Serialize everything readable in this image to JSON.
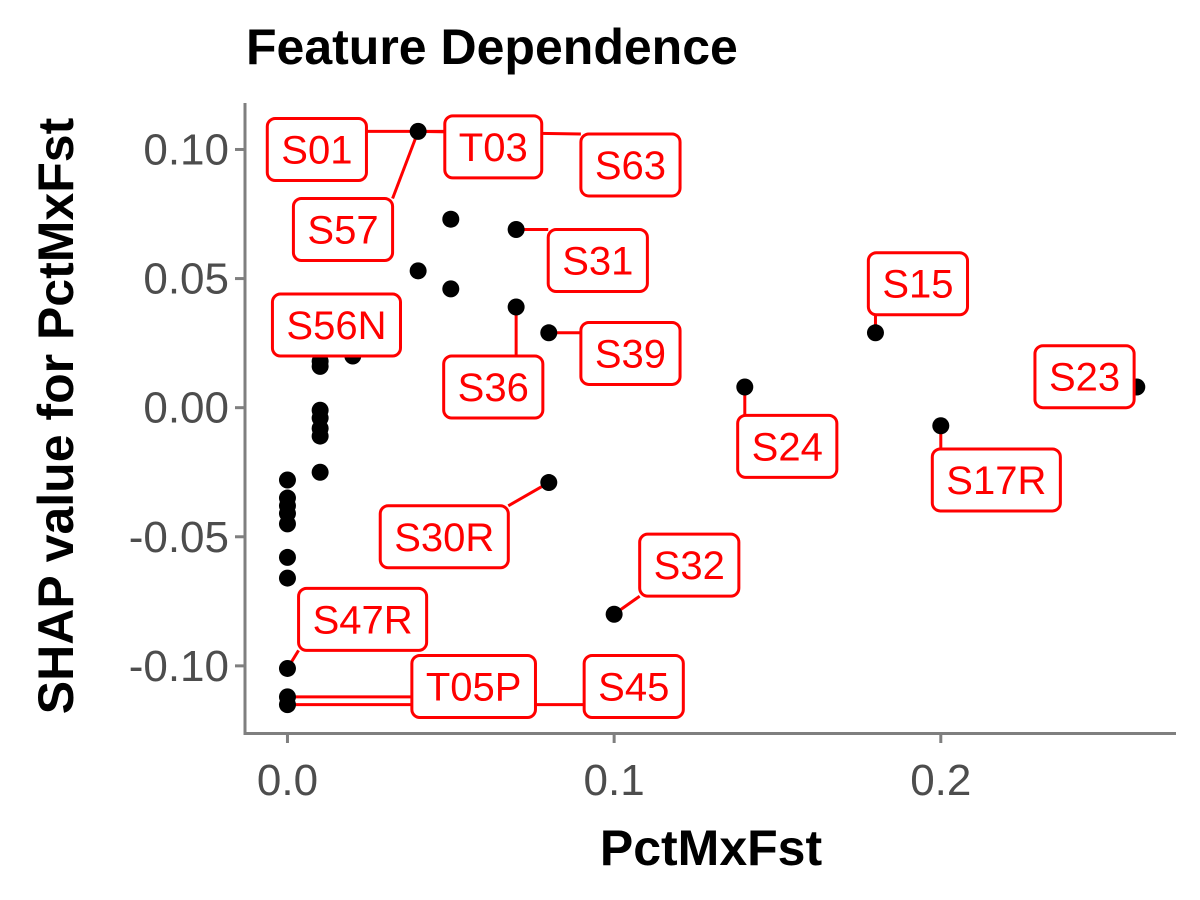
{
  "chart_data": {
    "type": "scatter",
    "title": "Feature Dependence",
    "xlabel": "PctMxFst",
    "ylabel": "SHAP value for PctMxFst",
    "xlim": [
      -0.013,
      0.272
    ],
    "ylim": [
      -0.126,
      0.118
    ],
    "x_ticks": [
      0.0,
      0.1,
      0.2
    ],
    "x_tick_labels": [
      "0.0",
      "0.1",
      "0.2"
    ],
    "y_ticks": [
      -0.1,
      -0.05,
      0.0,
      0.05,
      0.1
    ],
    "y_tick_labels": [
      "-0.10",
      "-0.05",
      "0.00",
      "0.05",
      "0.10"
    ],
    "grid": false,
    "point_color": "#000000",
    "label_color": "#ff0000",
    "points": [
      {
        "x": 0.04,
        "y": 0.107
      },
      {
        "x": 0.05,
        "y": 0.073
      },
      {
        "x": 0.07,
        "y": 0.069
      },
      {
        "x": 0.04,
        "y": 0.053
      },
      {
        "x": 0.05,
        "y": 0.046
      },
      {
        "x": 0.07,
        "y": 0.039
      },
      {
        "x": 0.08,
        "y": 0.029
      },
      {
        "x": 0.18,
        "y": 0.029
      },
      {
        "x": 0.01,
        "y": 0.021
      },
      {
        "x": 0.02,
        "y": 0.02
      },
      {
        "x": 0.01,
        "y": 0.018
      },
      {
        "x": 0.01,
        "y": 0.016
      },
      {
        "x": 0.14,
        "y": 0.008
      },
      {
        "x": 0.26,
        "y": 0.008
      },
      {
        "x": 0.01,
        "y": -0.001
      },
      {
        "x": 0.01,
        "y": -0.004
      },
      {
        "x": 0.2,
        "y": -0.007
      },
      {
        "x": 0.01,
        "y": -0.008
      },
      {
        "x": 0.01,
        "y": -0.011
      },
      {
        "x": 0.01,
        "y": -0.025
      },
      {
        "x": 0.0,
        "y": -0.028
      },
      {
        "x": 0.08,
        "y": -0.029
      },
      {
        "x": 0.0,
        "y": -0.035
      },
      {
        "x": 0.0,
        "y": -0.038
      },
      {
        "x": 0.0,
        "y": -0.041
      },
      {
        "x": 0.0,
        "y": -0.045
      },
      {
        "x": 0.0,
        "y": -0.058
      },
      {
        "x": 0.0,
        "y": -0.066
      },
      {
        "x": 0.1,
        "y": -0.08
      },
      {
        "x": 0.0,
        "y": -0.101
      },
      {
        "x": 0.0,
        "y": -0.112
      },
      {
        "x": 0.0,
        "y": -0.115
      }
    ],
    "labels": [
      {
        "text": "S01",
        "x": 0.04,
        "y": 0.107,
        "lx": 0.009,
        "ly": 0.1
      },
      {
        "text": "T03",
        "x": 0.04,
        "y": 0.107,
        "lx": 0.063,
        "ly": 0.101
      },
      {
        "text": "S63",
        "x": 0.04,
        "y": 0.107,
        "lx": 0.105,
        "ly": 0.094
      },
      {
        "text": "S57",
        "x": 0.04,
        "y": 0.107,
        "lx": 0.017,
        "ly": 0.069
      },
      {
        "text": "S31",
        "x": 0.07,
        "y": 0.069,
        "lx": 0.095,
        "ly": 0.057
      },
      {
        "text": "S15",
        "x": 0.18,
        "y": 0.029,
        "lx": 0.193,
        "ly": 0.048
      },
      {
        "text": "S56N",
        "x": 0.02,
        "y": 0.02,
        "lx": 0.015,
        "ly": 0.032
      },
      {
        "text": "S39",
        "x": 0.08,
        "y": 0.029,
        "lx": 0.105,
        "ly": 0.021
      },
      {
        "text": "S36",
        "x": 0.07,
        "y": 0.039,
        "lx": 0.063,
        "ly": 0.008
      },
      {
        "text": "S23",
        "x": 0.26,
        "y": 0.008,
        "lx": 0.244,
        "ly": 0.012
      },
      {
        "text": "S24",
        "x": 0.14,
        "y": 0.008,
        "lx": 0.153,
        "ly": -0.015
      },
      {
        "text": "S17R",
        "x": 0.2,
        "y": -0.007,
        "lx": 0.217,
        "ly": -0.028
      },
      {
        "text": "S30R",
        "x": 0.08,
        "y": -0.029,
        "lx": 0.048,
        "ly": -0.05
      },
      {
        "text": "S32",
        "x": 0.1,
        "y": -0.08,
        "lx": 0.123,
        "ly": -0.061
      },
      {
        "text": "S47R",
        "x": 0.0,
        "y": -0.101,
        "lx": 0.023,
        "ly": -0.082
      },
      {
        "text": "T05P",
        "x": 0.0,
        "y": -0.112,
        "lx": 0.057,
        "ly": -0.108
      },
      {
        "text": "S45",
        "x": 0.0,
        "y": -0.115,
        "lx": 0.106,
        "ly": -0.108
      }
    ]
  }
}
